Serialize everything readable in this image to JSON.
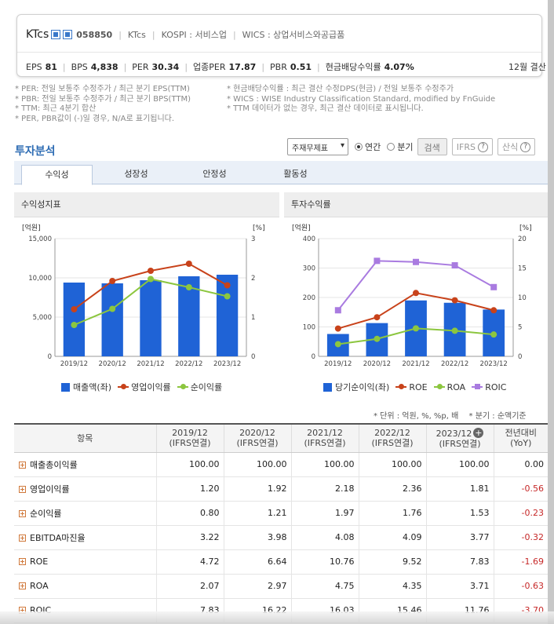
{
  "company": {
    "name": "KTcs",
    "code": "058850",
    "short": "KTcs",
    "market": "KOSPI : 서비스업",
    "wics": "WICS : 상업서비스와공급품"
  },
  "metrics": [
    {
      "label": "EPS",
      "value": "81"
    },
    {
      "label": "BPS",
      "value": "4,838"
    },
    {
      "label": "PER",
      "value": "30.34"
    },
    {
      "label": "업종PER",
      "value": "17.87"
    },
    {
      "label": "PBR",
      "value": "0.51"
    },
    {
      "label": "현금배당수익률",
      "value": "4.07%"
    }
  ],
  "settlement": "12월 결산",
  "notes_left": [
    "* PER: 전일 보통주 수정주가 / 최근 분기 EPS(TTM)",
    "* PBR: 전일 보통주 수정주가 / 최근 분기 BPS(TTM)",
    "* TTM: 최근 4분기 합산",
    "* PER, PBR값이 (-)일 경우, N/A로 표기됩니다."
  ],
  "notes_right": [
    "* 현금배당수익률 : 최근 결산 수정DPS(현금) / 전일 보통주 수정주가",
    "* WICS : WISE Industry Classification Standard, modified by FnGuide",
    "* TTM 데이터가 없는 경우, 최근 결산 데이터로 표시됩니다."
  ],
  "section_title": "투자분석",
  "controls": {
    "select_value": "주재무제표",
    "radio_annual": "연간",
    "radio_quarter": "분기",
    "search": "검색",
    "ifrs": "IFRS",
    "formula": "산식"
  },
  "tabs": [
    "수익성",
    "성장성",
    "안정성",
    "활동성"
  ],
  "unit_note": "* 단위 : 억원, %, %p, 배",
  "quarter_note": "* 분기 : 순액기준",
  "chart_data": [
    {
      "type": "bar",
      "title": "수익성지표",
      "categories": [
        "2019/12",
        "2020/12",
        "2021/12",
        "2022/12",
        "2023/12"
      ],
      "left_unit": "[억원]",
      "right_unit": "[%]",
      "left_ticks": [
        "0",
        "5,000",
        "10,000",
        "15,000"
      ],
      "right_ticks": [
        "0",
        "1",
        "2",
        "3"
      ],
      "ylim": [
        0,
        15000
      ],
      "y2lim": [
        0,
        3
      ],
      "series": [
        {
          "name": "매출액(좌)",
          "axis": "left",
          "kind": "bar",
          "color": "#1f63d6",
          "values": [
            9400,
            9300,
            9700,
            10200,
            10400
          ]
        },
        {
          "name": "영업이익률",
          "axis": "right",
          "kind": "line",
          "color": "#c8421a",
          "values": [
            1.2,
            1.92,
            2.18,
            2.36,
            1.81
          ]
        },
        {
          "name": "순이익률",
          "axis": "right",
          "kind": "line",
          "color": "#8cc63f",
          "values": [
            0.8,
            1.21,
            1.97,
            1.76,
            1.53
          ]
        }
      ]
    },
    {
      "type": "bar",
      "title": "투자수익률",
      "categories": [
        "2019/12",
        "2020/12",
        "2021/12",
        "2022/12",
        "2023/12"
      ],
      "left_unit": "[억원]",
      "right_unit": "[%]",
      "left_ticks": [
        "0",
        "100",
        "200",
        "300",
        "400"
      ],
      "right_ticks": [
        "0",
        "5",
        "10",
        "15",
        "20"
      ],
      "ylim": [
        0,
        400
      ],
      "y2lim": [
        0,
        20
      ],
      "series": [
        {
          "name": "당기순이익(좌)",
          "axis": "left",
          "kind": "bar",
          "color": "#1f63d6",
          "values": [
            76,
            113,
            190,
            182,
            159
          ]
        },
        {
          "name": "ROE",
          "axis": "right",
          "kind": "line",
          "color": "#c8421a",
          "values": [
            4.72,
            6.64,
            10.76,
            9.52,
            7.83
          ]
        },
        {
          "name": "ROA",
          "axis": "right",
          "kind": "line",
          "color": "#8cc63f",
          "values": [
            2.07,
            2.97,
            4.75,
            4.35,
            3.71
          ]
        },
        {
          "name": "ROIC",
          "axis": "right",
          "kind": "line",
          "color": "#a97be0",
          "marker": "square",
          "values": [
            7.83,
            16.22,
            16.03,
            15.46,
            11.76
          ]
        }
      ]
    }
  ],
  "table": {
    "header_item": "항목",
    "columns": [
      {
        "year": "2019/12",
        "sub": "(IFRS연결)"
      },
      {
        "year": "2020/12",
        "sub": "(IFRS연결)"
      },
      {
        "year": "2021/12",
        "sub": "(IFRS연결)"
      },
      {
        "year": "2022/12",
        "sub": "(IFRS연결)"
      },
      {
        "year": "2023/12",
        "sub": "(IFRS연결)"
      },
      {
        "year": "전년대비",
        "sub": "(YoY)"
      }
    ],
    "rows": [
      {
        "label": "매출총이익률",
        "values": [
          "100.00",
          "100.00",
          "100.00",
          "100.00",
          "100.00",
          "0.00"
        ]
      },
      {
        "label": "영업이익률",
        "values": [
          "1.20",
          "1.92",
          "2.18",
          "2.36",
          "1.81",
          "-0.56"
        ]
      },
      {
        "label": "순이익률",
        "values": [
          "0.80",
          "1.21",
          "1.97",
          "1.76",
          "1.53",
          "-0.23"
        ]
      },
      {
        "label": "EBITDA마진율",
        "values": [
          "3.22",
          "3.98",
          "4.08",
          "4.09",
          "3.77",
          "-0.32"
        ]
      },
      {
        "label": "ROE",
        "values": [
          "4.72",
          "6.64",
          "10.76",
          "9.52",
          "7.83",
          "-1.69"
        ]
      },
      {
        "label": "ROA",
        "values": [
          "2.07",
          "2.97",
          "4.75",
          "4.35",
          "3.71",
          "-0.63"
        ]
      },
      {
        "label": "ROIC",
        "values": [
          "7.83",
          "16.22",
          "16.03",
          "15.46",
          "11.76",
          "-3.70"
        ]
      }
    ]
  }
}
